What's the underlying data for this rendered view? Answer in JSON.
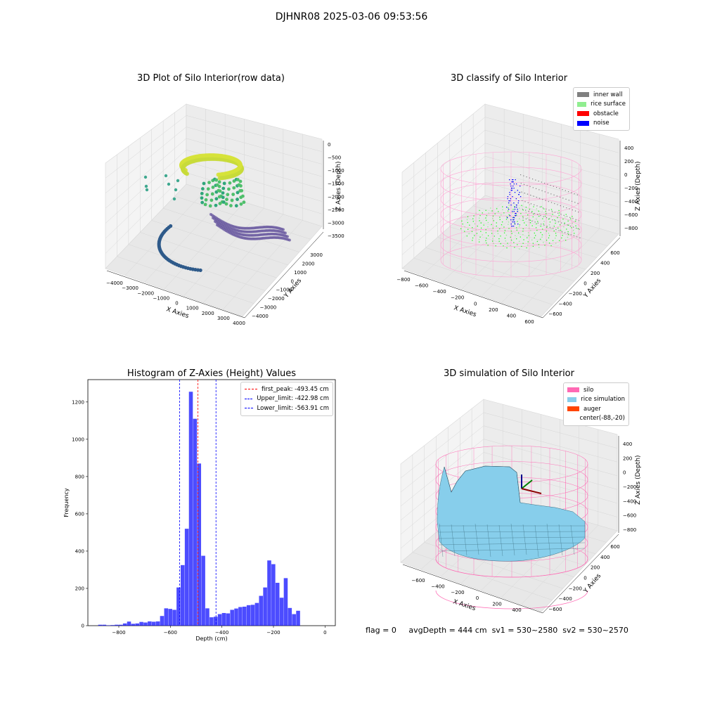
{
  "figure": {
    "suptitle": "DJHNR08 2025-03-06 09:53:56",
    "status_line": {
      "flag": "flag = 0",
      "avg_depth": "avgDepth = 444 cm",
      "sv1": "sv1 = 530~2580",
      "sv2": "sv2 = 530~2570"
    }
  },
  "chart_data": [
    {
      "type": "scatter",
      "panel": "3d-raw",
      "title": "3D Plot of Silo Interior(row data)",
      "xlabel": "X Axies",
      "ylabel": "Y Axies",
      "zlabel": "Z Axies (Depth)",
      "x_ticks": [
        "−4000",
        "−3000",
        "−2000",
        "−1000",
        "0",
        "1000",
        "2000",
        "3000",
        "4000"
      ],
      "y_ticks": [
        "−4000",
        "−3000",
        "−2000",
        "−1000",
        "0",
        "1000",
        "2000",
        "3000"
      ],
      "z_ticks": [
        "0",
        "−500",
        "−1000",
        "−1500",
        "−2000",
        "−2500",
        "−3000",
        "−3500"
      ],
      "xlim": [
        -4500,
        4500
      ],
      "ylim": [
        -4500,
        3500
      ],
      "zlim": [
        -3700,
        200
      ],
      "colormap": "viridis (by depth)",
      "groups": [
        {
          "label": "rice top ring (yellow)",
          "color": "#d6e23a"
        },
        {
          "label": "green cluster",
          "color": "#4fbf6b"
        },
        {
          "label": "purple band",
          "color": "#6a5aa0"
        },
        {
          "label": "dark blue floor ring",
          "color": "#2e5a8a"
        },
        {
          "label": "teal wall column",
          "color": "#3fa88f"
        }
      ]
    },
    {
      "type": "scatter",
      "panel": "3d-classify",
      "title": "3D classify of Silo Interior",
      "xlabel": "X Axies",
      "ylabel": "Y Axies",
      "zlabel": "Z Axies (Depth)",
      "x_ticks": [
        "−800",
        "−600",
        "−400",
        "−200",
        "0",
        "200",
        "400",
        "600"
      ],
      "y_ticks": [
        "−600",
        "−400",
        "−200",
        "0",
        "200",
        "400",
        "600"
      ],
      "z_ticks": [
        "400",
        "200",
        "0",
        "−200",
        "−400",
        "−600",
        "−800"
      ],
      "xlim": [
        -800,
        650
      ],
      "ylim": [
        -650,
        650
      ],
      "zlim": [
        -900,
        450
      ],
      "legend": [
        {
          "label": "inner wall",
          "color": "#808080"
        },
        {
          "label": "rice surface",
          "color": "#90ee90"
        },
        {
          "label": "obstacle",
          "color": "#ff0000"
        },
        {
          "label": "noise",
          "color": "#0000ff"
        }
      ],
      "silo_wireframe_color": "#ff9ed1"
    },
    {
      "type": "bar",
      "panel": "histogram",
      "title": "Histogram of Z-Axies (Height) Values",
      "xlabel": "Depth (cm)",
      "ylabel": "Frequency",
      "xlim": [
        -920,
        40
      ],
      "ylim": [
        0,
        1320
      ],
      "x_ticks": [
        -800,
        -600,
        -400,
        -200,
        0
      ],
      "x_tick_labels": [
        "−800",
        "−600",
        "−400",
        "−200",
        "0"
      ],
      "y_ticks": [
        0,
        200,
        400,
        600,
        800,
        1000,
        1200
      ],
      "bar_color": "#0000ff",
      "bin_width": 16,
      "bins": [
        {
          "x": -880,
          "v": 5
        },
        {
          "x": -864,
          "v": 5
        },
        {
          "x": -848,
          "v": 2
        },
        {
          "x": -832,
          "v": 3
        },
        {
          "x": -816,
          "v": 5
        },
        {
          "x": -800,
          "v": 5
        },
        {
          "x": -784,
          "v": 12
        },
        {
          "x": -768,
          "v": 22
        },
        {
          "x": -752,
          "v": 10
        },
        {
          "x": -736,
          "v": 12
        },
        {
          "x": -720,
          "v": 20
        },
        {
          "x": -704,
          "v": 17
        },
        {
          "x": -688,
          "v": 23
        },
        {
          "x": -672,
          "v": 21
        },
        {
          "x": -656,
          "v": 23
        },
        {
          "x": -640,
          "v": 52
        },
        {
          "x": -624,
          "v": 93
        },
        {
          "x": -608,
          "v": 90
        },
        {
          "x": -592,
          "v": 85
        },
        {
          "x": -576,
          "v": 205
        },
        {
          "x": -560,
          "v": 325
        },
        {
          "x": -544,
          "v": 520
        },
        {
          "x": -528,
          "v": 1255
        },
        {
          "x": -512,
          "v": 1110
        },
        {
          "x": -496,
          "v": 870
        },
        {
          "x": -480,
          "v": 375
        },
        {
          "x": -464,
          "v": 93
        },
        {
          "x": -448,
          "v": 45
        },
        {
          "x": -432,
          "v": 48
        },
        {
          "x": -416,
          "v": 62
        },
        {
          "x": -400,
          "v": 68
        },
        {
          "x": -384,
          "v": 66
        },
        {
          "x": -368,
          "v": 85
        },
        {
          "x": -352,
          "v": 92
        },
        {
          "x": -336,
          "v": 100
        },
        {
          "x": -320,
          "v": 102
        },
        {
          "x": -304,
          "v": 110
        },
        {
          "x": -288,
          "v": 112
        },
        {
          "x": -272,
          "v": 122
        },
        {
          "x": -256,
          "v": 160
        },
        {
          "x": -240,
          "v": 205
        },
        {
          "x": -224,
          "v": 350
        },
        {
          "x": -208,
          "v": 330
        },
        {
          "x": -192,
          "v": 230
        },
        {
          "x": -176,
          "v": 150
        },
        {
          "x": -160,
          "v": 255
        },
        {
          "x": -144,
          "v": 95
        },
        {
          "x": -128,
          "v": 62
        },
        {
          "x": -112,
          "v": 80
        }
      ],
      "lines": [
        {
          "label": "first_peak: -493.45 cm",
          "x": -493.45,
          "color": "#ff0000"
        },
        {
          "label": "Upper_limit: -422.98 cm",
          "x": -422.98,
          "color": "#0000ff"
        },
        {
          "label": "Lower_limit: -563.91 cm",
          "x": -563.91,
          "color": "#0000ff"
        }
      ]
    },
    {
      "type": "area",
      "panel": "3d-simulation",
      "title": "3D simulation of Silo Interior",
      "xlabel": "X Axies",
      "ylabel": "Y Axies",
      "zlabel": "Z Axies (Depth)",
      "x_ticks": [
        "−600",
        "−400",
        "−200",
        "0",
        "200",
        "400"
      ],
      "y_ticks": [
        "−600",
        "−400",
        "−200",
        "0",
        "200",
        "400",
        "600"
      ],
      "z_ticks": [
        "400",
        "200",
        "0",
        "−200",
        "−400",
        "−600",
        "−800"
      ],
      "legend": [
        {
          "label": "silo",
          "color": "#ff69b4"
        },
        {
          "label": "rice simulation",
          "color": "#87ceeb"
        },
        {
          "label": "auger",
          "color": "#ff4500"
        },
        {
          "label": "center(-88,-20)",
          "color": ""
        }
      ]
    }
  ]
}
